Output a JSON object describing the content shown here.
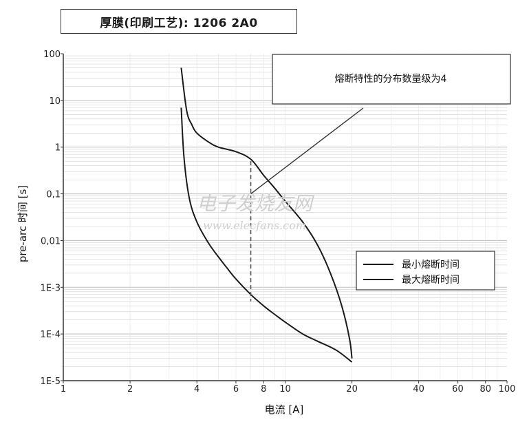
{
  "chart_data": {
    "type": "line",
    "title": "厚膜(印刷工艺): 1206 2A0",
    "xlabel": "电流 [A]",
    "ylabel": "pre-arc 时间 [s]",
    "x_scale": "log",
    "y_scale": "log",
    "xlim": [
      1,
      100
    ],
    "ylim": [
      1e-05,
      100
    ],
    "x_ticks": [
      {
        "value": 1,
        "label": "1"
      },
      {
        "value": 2,
        "label": "2"
      },
      {
        "value": 4,
        "label": "4"
      },
      {
        "value": 6,
        "label": "6"
      },
      {
        "value": 8,
        "label": "8"
      },
      {
        "value": 10,
        "label": "10"
      },
      {
        "value": 20,
        "label": "20"
      },
      {
        "value": 40,
        "label": "40"
      },
      {
        "value": 60,
        "label": "60"
      },
      {
        "value": 80,
        "label": "80"
      },
      {
        "value": 100,
        "label": "100"
      }
    ],
    "y_ticks": [
      {
        "value": 100,
        "label": "100"
      },
      {
        "value": 10,
        "label": "10"
      },
      {
        "value": 1,
        "label": "1"
      },
      {
        "value": 0.1,
        "label": "0,1"
      },
      {
        "value": 0.01,
        "label": "0,01"
      },
      {
        "value": 0.001,
        "label": "1E-3"
      },
      {
        "value": 0.0001,
        "label": "1E-4"
      },
      {
        "value": 1e-05,
        "label": "1E-5"
      }
    ],
    "grid": true,
    "legend_position": "right",
    "series": [
      {
        "name": "最小熔断时间",
        "x": [
          3.4,
          3.5,
          3.7,
          4.0,
          4.5,
          5.0,
          5.5,
          6.0,
          7.0,
          8.0,
          9.0,
          10.0,
          12.0,
          14.0,
          17.0,
          20.0
        ],
        "y": [
          7,
          0.6,
          0.08,
          0.025,
          0.009,
          0.0045,
          0.0025,
          0.0015,
          0.0007,
          0.0004,
          0.00026,
          0.00018,
          0.0001,
          7e-05,
          4.5e-05,
          2.5e-05
        ]
      },
      {
        "name": "最大熔断时间",
        "x": [
          3.4,
          3.6,
          3.8,
          4.0,
          4.5,
          5.0,
          6.0,
          7.0,
          8.0,
          9.0,
          10.0,
          12.0,
          14.0,
          16.0,
          18.0,
          19.5,
          20.0
        ],
        "y": [
          50,
          6,
          3,
          2,
          1.3,
          1.0,
          0.8,
          0.55,
          0.25,
          0.13,
          0.07,
          0.025,
          0.008,
          0.002,
          0.0004,
          8e-05,
          3e-05
        ]
      }
    ],
    "annotations": {
      "box_text": "熔断特性的分布数量级为4",
      "dashed_x": 7.0,
      "dashed_y_top": 0.5,
      "dashed_y_bottom": 0.0005
    },
    "watermark": {
      "line1": "电子发烧友网",
      "line2": "www.elecfans.com"
    },
    "colors": {
      "curve": "#1a1a1a",
      "grid": "#d0d0d0",
      "axis": "#333333"
    }
  }
}
